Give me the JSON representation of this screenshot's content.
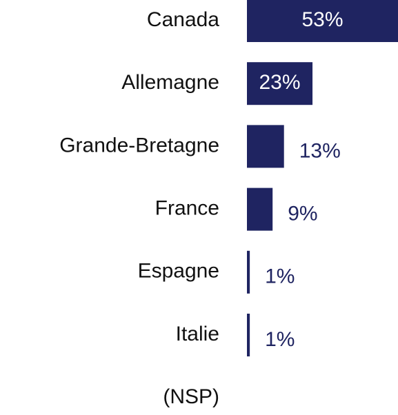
{
  "chart_data": {
    "type": "bar",
    "orientation": "horizontal",
    "categories": [
      "Canada",
      "Allemagne",
      "Grande-Bretagne",
      "France",
      "Espagne",
      "Italie",
      "(NSP)"
    ],
    "values": [
      53,
      23,
      13,
      9,
      1,
      1,
      null
    ],
    "value_labels": [
      "53%",
      "23%",
      "13%",
      "9%",
      "1%",
      "1%",
      null
    ],
    "color": "#1f2461"
  }
}
